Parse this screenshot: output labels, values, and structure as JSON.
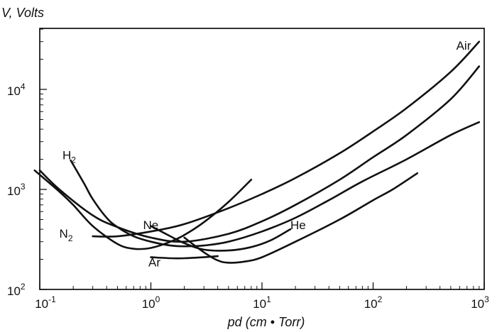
{
  "chart_data": {
    "type": "line",
    "title": "",
    "xlabel": "pd (cm • Torr)",
    "ylabel": "V, Volts",
    "xscale": "log",
    "yscale": "log",
    "xlim": [
      0.1,
      1000
    ],
    "ylim": [
      100,
      40000
    ],
    "grid": false,
    "legend": "none",
    "x_ticks": [
      {
        "base": "10",
        "exp": "-1",
        "value": 0.1
      },
      {
        "base": "10",
        "exp": "0",
        "value": 1
      },
      {
        "base": "10",
        "exp": "1",
        "value": 10
      },
      {
        "base": "10",
        "exp": "2",
        "value": 100
      },
      {
        "base": "10",
        "exp": "3",
        "value": 1000
      }
    ],
    "y_ticks": [
      {
        "base": "10",
        "exp": "2",
        "value": 100
      },
      {
        "base": "10",
        "exp": "3",
        "value": 1000
      },
      {
        "base": "10",
        "exp": "4",
        "value": 10000
      }
    ],
    "series": [
      {
        "name": "Air",
        "label_main": "Air",
        "label_sub": "",
        "label_at": [
          560,
          25000
        ],
        "x": [
          0.3,
          0.5,
          1,
          2,
          5,
          10,
          20,
          50,
          100,
          200,
          500,
          900
        ],
        "y": [
          340,
          340,
          380,
          450,
          650,
          900,
          1300,
          2300,
          3800,
          6500,
          15000,
          30000
        ]
      },
      {
        "name": "N2",
        "label_main": "N",
        "label_sub": "2",
        "label_at": [
          0.15,
          330
        ],
        "x": [
          0.1,
          0.15,
          0.3,
          0.5,
          1,
          2,
          5,
          10,
          20,
          50,
          100,
          200,
          500,
          900
        ],
        "y": [
          1550,
          1000,
          550,
          420,
          330,
          300,
          360,
          480,
          700,
          1250,
          2100,
          3500,
          8000,
          17000
        ]
      },
      {
        "name": "H2",
        "label_main": "H",
        "label_sub": "2",
        "label_at": [
          0.16,
          2000
        ],
        "x": [
          0.19,
          0.25,
          0.3,
          0.4,
          0.5,
          0.7,
          1,
          1.5,
          2,
          3,
          5,
          10,
          20,
          40,
          80,
          200,
          500,
          900
        ],
        "y": [
          1950,
          1150,
          800,
          520,
          420,
          340,
          300,
          275,
          270,
          275,
          300,
          380,
          520,
          780,
          1200,
          2000,
          3500,
          4700
        ]
      },
      {
        "name": "Ne",
        "label_main": "Ne",
        "label_sub": "",
        "label_at": [
          0.85,
          400
        ],
        "x": [
          0.09,
          0.15,
          0.2,
          0.3,
          0.5,
          0.7,
          1,
          1.5,
          2,
          3,
          5,
          8
        ],
        "y": [
          1550,
          950,
          700,
          430,
          285,
          255,
          260,
          300,
          350,
          470,
          750,
          1250
        ]
      },
      {
        "name": "He",
        "label_main": "He",
        "label_sub": "",
        "label_at": [
          18,
          400
        ],
        "x": [
          1,
          1.5,
          2,
          3,
          5,
          8,
          12,
          18
        ],
        "y": [
          430,
          340,
          290,
          250,
          245,
          265,
          310,
          400
        ]
      },
      {
        "name": "Ar",
        "label_main": "Ar",
        "label_sub": "",
        "label_at": [
          0.95,
          170
        ],
        "x": [
          2,
          3,
          4,
          5,
          7,
          10,
          20,
          50,
          100,
          150,
          250
        ],
        "y": [
          330,
          235,
          195,
          185,
          190,
          210,
          300,
          500,
          780,
          1000,
          1450
        ]
      },
      {
        "name": "Ar (low pd)",
        "label_main": "",
        "label_sub": "",
        "label_at": null,
        "x": [
          1,
          1.5,
          2,
          3,
          4
        ],
        "y": [
          210,
          205,
          205,
          210,
          215
        ]
      }
    ]
  }
}
